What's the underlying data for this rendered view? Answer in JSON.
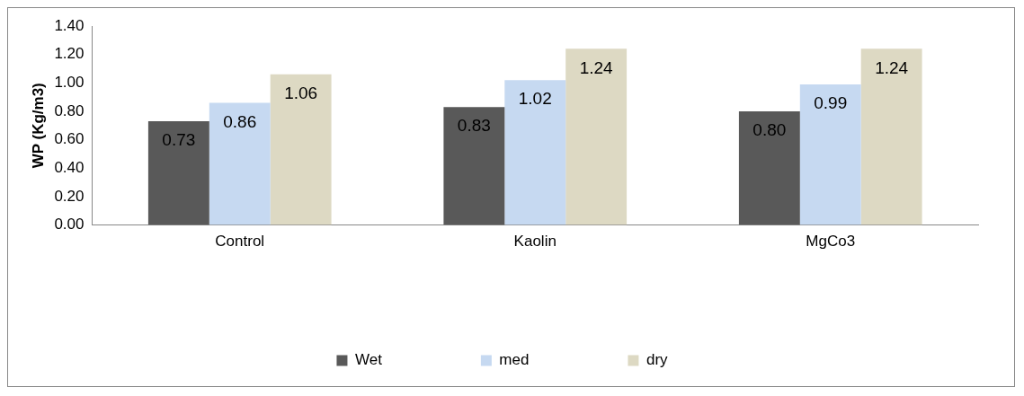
{
  "chart_data": {
    "type": "bar",
    "ylabel": "WP (Kg/m3)",
    "categories": [
      "Control",
      "Kaolin",
      "MgCo3"
    ],
    "series": [
      {
        "name": "Wet",
        "color": "#595959",
        "values": [
          0.73,
          0.83,
          0.8
        ],
        "value_labels": [
          "0.73",
          "0.83",
          "0.80"
        ]
      },
      {
        "name": "med",
        "color": "#c6d9f1",
        "values": [
          0.86,
          1.02,
          0.99
        ],
        "value_labels": [
          "0.86",
          "1.02",
          "0.99"
        ]
      },
      {
        "name": "dry",
        "color": "#ddd9c3",
        "values": [
          1.06,
          1.24,
          1.24
        ],
        "value_labels": [
          "1.06",
          "1.24",
          "1.24"
        ]
      }
    ],
    "ylim": [
      0,
      1.4
    ],
    "yticks": [
      {
        "value": 0,
        "label": "0.00"
      },
      {
        "value": 0.2,
        "label": "0.20"
      },
      {
        "value": 0.4,
        "label": "0.40"
      },
      {
        "value": 0.6,
        "label": "0.60"
      },
      {
        "value": 0.8,
        "label": "0.80"
      },
      {
        "value": 1.0,
        "label": "1.00"
      },
      {
        "value": 1.2,
        "label": "1.20"
      },
      {
        "value": 1.4,
        "label": "1.40"
      }
    ],
    "grid": false,
    "legend": "bottom"
  }
}
